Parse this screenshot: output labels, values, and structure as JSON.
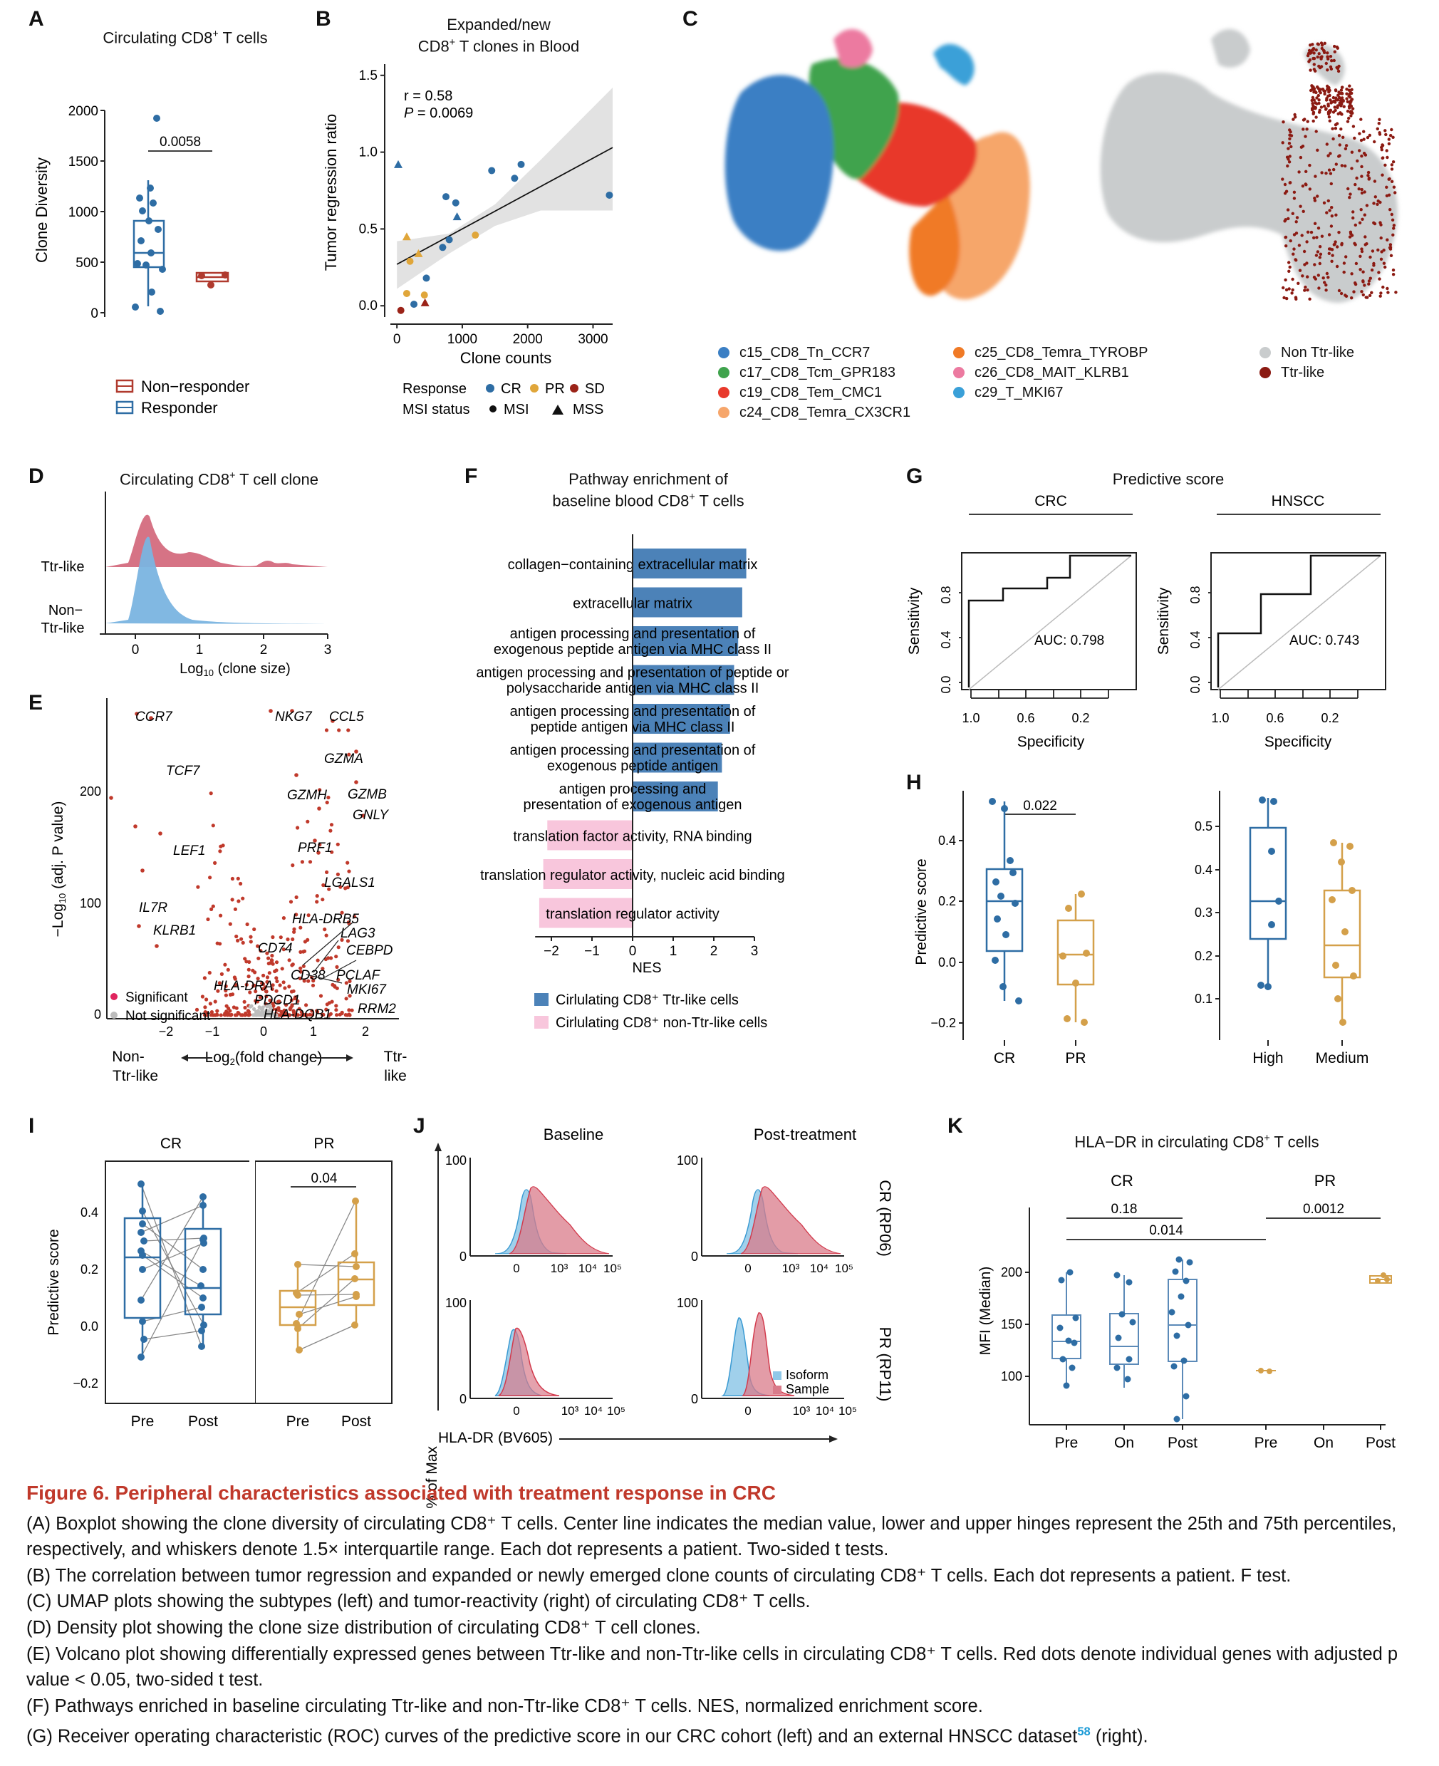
{
  "panels": {
    "A": {
      "letter": "A",
      "title": "Circulating CD8⁺ T cells",
      "ylabel": "Clone Diversity",
      "yticks": [
        "2000",
        "1500",
        "1000",
        "500",
        "0"
      ],
      "pvalue": "0.0058",
      "legend": [
        "Non−responder",
        "Responder"
      ],
      "colors": {
        "responder": "#2e6da4",
        "non_responder": "#b03a2e"
      }
    },
    "B": {
      "letter": "B",
      "title": [
        "Expanded/new",
        "CD8⁺ T clones in Blood"
      ],
      "ylabel": "Tumor regression ratio",
      "xlabel": "Clone counts",
      "yticks": [
        "1.5",
        "1.0",
        "0.5",
        "0.0"
      ],
      "xticks": [
        "0",
        "1000",
        "2000",
        "3000"
      ],
      "stat_r": "r = 0.58",
      "stat_p": "P = 0.0069",
      "legend_response_label": "Response",
      "legend_response": [
        "CR",
        "PR",
        "SD"
      ],
      "legend_msi_label": "MSI status",
      "legend_msi": [
        "MSI",
        "MSS"
      ]
    },
    "C": {
      "letter": "C",
      "legend_left": [
        "c15_CD8_Tn_CCR7",
        "c17_CD8_Tcm_GPR183",
        "c19_CD8_Tem_CMC1",
        "c24_CD8_Temra_CX3CR1",
        "c25_CD8_Temra_TYROBP",
        "c26_CD8_MAIT_KLRB1",
        "c29_T_MKI67"
      ],
      "legend_left_colors": [
        "#3b7fc4",
        "#3fa34d",
        "#e8392b",
        "#f6a66b",
        "#f07a26",
        "#ec7aa0",
        "#3aa0d8"
      ],
      "legend_right": [
        "Non Ttr-like",
        "Ttr-like"
      ],
      "legend_right_colors": [
        "#c9cccd",
        "#8b1a12"
      ]
    },
    "D": {
      "letter": "D",
      "title": "Circulating CD8⁺ T cell clone",
      "rows": [
        "Ttr-like",
        "Non−",
        "Ttr-like"
      ],
      "xticks": [
        "0",
        "1",
        "2",
        "3"
      ],
      "xlabel": "Log₁₀ (clone size)"
    },
    "E": {
      "letter": "E",
      "ylabel": "−Log₁₀ (adj. P value)",
      "yticks": [
        "200",
        "100",
        "0"
      ],
      "xticks": [
        "−2",
        "−1",
        "0",
        "1",
        "2"
      ],
      "xlabel": "Log₂(fold change)",
      "left_end": [
        "Non-",
        "Ttr-like"
      ],
      "right_end": [
        "Ttr-",
        "like"
      ],
      "legend": [
        "Significant",
        "Not significant"
      ],
      "genes": [
        "CCR7",
        "TCF7",
        "LEF1",
        "IL7R",
        "KLRB1",
        "NKG7",
        "CCL5",
        "GZMA",
        "GZMH",
        "GZMB",
        "GNLY",
        "PRF1",
        "LGALS1",
        "HLA-DRB5",
        "LAG3",
        "CD74",
        "CEBPD",
        "CD38",
        "PCLAF",
        "HLA-DRA",
        "MKI67",
        "PDCD1",
        "RRM2",
        "HLA-DQB1"
      ]
    },
    "F": {
      "letter": "F",
      "title": [
        "Pathway enrichment of",
        "baseline blood CD8⁺ T cells"
      ],
      "xlabel": "NES",
      "xticks": [
        "−2",
        "−1",
        "0",
        "1",
        "2",
        "3"
      ],
      "legend": [
        "Cirlulating CD8⁺ Ttr-like cells",
        "Cirlulating CD8⁺ non-Ttr-like cells"
      ]
    },
    "G": {
      "letter": "G",
      "title": "Predictive score",
      "subtitles": [
        "CRC",
        "HNSCC"
      ],
      "ylabel": "Sensitivity",
      "xlabel": "Specificity",
      "yticks": [
        "0.0",
        "0.4",
        "0.8"
      ],
      "xticks": [
        "1.0",
        "0.6",
        "0.2"
      ],
      "auc": [
        "AUC: 0.798",
        "AUC: 0.743"
      ]
    },
    "H": {
      "letter": "H",
      "ylabel": "Predictive score",
      "yticks_left": [
        "0.4",
        "0.2",
        "0.0",
        "−0.2"
      ],
      "yticks_right": [
        "0.5",
        "0.4",
        "0.3",
        "0.2",
        "0.1"
      ],
      "xleft": [
        "CR",
        "PR"
      ],
      "xright": [
        "High",
        "Medium"
      ],
      "pvalue": "0.022"
    },
    "I": {
      "letter": "I",
      "ylabel": "Predictive score",
      "groups": [
        "CR",
        "PR"
      ],
      "yticks": [
        "0.4",
        "0.2",
        "0.0",
        "−0.2"
      ],
      "xticks": [
        "Pre",
        "Post"
      ],
      "pvalue": "0.04"
    },
    "J": {
      "letter": "J",
      "col_titles": [
        "Baseline",
        "Post-treatment"
      ],
      "row_titles": [
        "CR (RP06)",
        "PR (RP11)"
      ],
      "ylabel": "% of Max",
      "xlabel": "HLA-DR (BV605)",
      "yticks": [
        "100",
        "0"
      ],
      "xticks": [
        "0",
        "10³",
        "10⁴",
        "10⁵"
      ],
      "legend": [
        "Isoform",
        "Sample"
      ]
    },
    "K": {
      "letter": "K",
      "title": "HLA−DR in circulating CD8⁺ T cells",
      "groups": [
        "CR",
        "PR"
      ],
      "ylabel": "MFI (Median)",
      "yticks": [
        "200",
        "150",
        "100"
      ],
      "xticks": [
        "Pre",
        "On",
        "Post",
        "Pre",
        "On",
        "Post"
      ],
      "pvalues": [
        "0.18",
        "0.014",
        "0.0012"
      ]
    }
  },
  "caption": {
    "title": "Figure 6.  Peripheral characteristics associated with treatment response in CRC",
    "A": "(A) Boxplot showing the clone diversity of circulating CD8⁺ T cells. Center line indicates the median value, lower and upper hinges represent the 25th and 75th percentiles, respectively, and whiskers denote 1.5× interquartile range. Each dot represents a patient. Two-sided t tests.",
    "B": "(B) The correlation between tumor regression and expanded or newly emerged clone counts of circulating CD8⁺ T cells. Each dot represents a patient. F test.",
    "C": "(C) UMAP plots showing the subtypes (left) and tumor-reactivity (right) of circulating CD8⁺ T cells.",
    "D": "(D) Density plot showing the clone size distribution of circulating CD8⁺ T cell clones.",
    "E": "(E) Volcano plot showing differentially expressed genes between Ttr-like and non-Ttr-like cells in circulating CD8⁺ T cells. Red dots denote individual genes with adjusted p value < 0.05, two-sided t test.",
    "F": "(F) Pathways enriched in baseline circulating Ttr-like and non-Ttr-like CD8⁺ T cells. NES, normalized enrichment score.",
    "G_pre": "(G) Receiver operating characteristic (ROC) curves of the predictive score in our CRC cohort (left) and an external HNSCC dataset",
    "G_ref": "58",
    "G_post": " (right)."
  },
  "chart_data": [
    {
      "id": "F",
      "type": "bar",
      "title": "Pathway enrichment of baseline blood CD8⁺ T cells",
      "xlabel": "NES",
      "xlim": [
        -2.4,
        3
      ],
      "categories": [
        "collagen−containing extracellular matrix",
        "extracellular matrix",
        "antigen processing and presentation of exogenous peptide antigen via MHC class II",
        "antigen processing and presentation of peptide or polysaccharide antigen via MHC class II",
        "antigen processing and presentation of peptide antigen via MHC class II",
        "antigen processing and presentation of exogenous peptide antigen",
        "antigen processing and presentation of exogenous antigen",
        "translation factor activity, RNA binding",
        "translation regulator activity, nucleic acid binding",
        "translation regulator activity"
      ],
      "values": [
        2.8,
        2.7,
        2.6,
        2.5,
        2.4,
        2.2,
        2.1,
        -2.1,
        -2.2,
        -2.3
      ],
      "group": [
        "Ttr",
        "Ttr",
        "Ttr",
        "Ttr",
        "Ttr",
        "Ttr",
        "Ttr",
        "nonTtr",
        "nonTtr",
        "nonTtr"
      ]
    },
    {
      "id": "B",
      "type": "scatter",
      "xlabel": "Clone counts",
      "ylabel": "Tumor regression ratio",
      "xlim": [
        -100,
        3300
      ],
      "ylim": [
        -0.05,
        1.55
      ],
      "points": [
        {
          "x": 20,
          "y": 0.92,
          "r": "CR",
          "m": "MSS"
        },
        {
          "x": 1450,
          "y": 0.88,
          "r": "CR",
          "m": "MSI"
        },
        {
          "x": 1900,
          "y": 0.92,
          "r": "CR",
          "m": "MSI"
        },
        {
          "x": 1800,
          "y": 0.83,
          "r": "CR",
          "m": "MSI"
        },
        {
          "x": 3250,
          "y": 0.72,
          "r": "CR",
          "m": "MSI"
        },
        {
          "x": 750,
          "y": 0.71,
          "r": "CR",
          "m": "MSI"
        },
        {
          "x": 900,
          "y": 0.67,
          "r": "CR",
          "m": "MSI"
        },
        {
          "x": 920,
          "y": 0.58,
          "r": "CR",
          "m": "MSS"
        },
        {
          "x": 1200,
          "y": 0.46,
          "r": "PR",
          "m": "MSI"
        },
        {
          "x": 800,
          "y": 0.43,
          "r": "CR",
          "m": "MSI"
        },
        {
          "x": 700,
          "y": 0.38,
          "r": "CR",
          "m": "MSI"
        },
        {
          "x": 150,
          "y": 0.45,
          "r": "PR",
          "m": "MSS"
        },
        {
          "x": 330,
          "y": 0.34,
          "r": "PR",
          "m": "MSS"
        },
        {
          "x": 200,
          "y": 0.29,
          "r": "PR",
          "m": "MSI"
        },
        {
          "x": 450,
          "y": 0.18,
          "r": "CR",
          "m": "MSI"
        },
        {
          "x": 150,
          "y": 0.08,
          "r": "PR",
          "m": "MSI"
        },
        {
          "x": 420,
          "y": 0.07,
          "r": "PR",
          "m": "MSI"
        },
        {
          "x": 260,
          "y": 0.01,
          "r": "CR",
          "m": "MSI"
        },
        {
          "x": 60,
          "y": -0.03,
          "r": "SD",
          "m": "MSI"
        },
        {
          "x": 430,
          "y": 0.02,
          "r": "SD",
          "m": "MSS"
        }
      ],
      "fit": {
        "x": [
          0,
          3300
        ],
        "y": [
          0.27,
          1.03
        ]
      }
    }
  ]
}
